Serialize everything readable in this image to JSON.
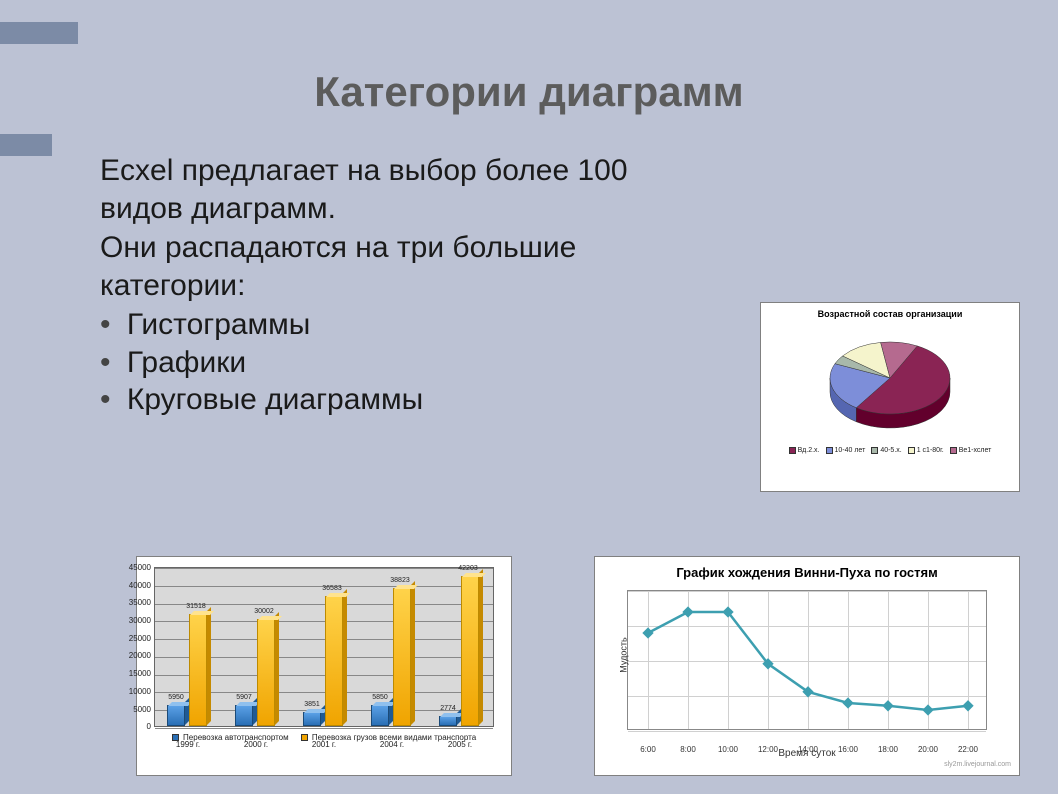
{
  "slide": {
    "title": "Категории диаграмм",
    "para1": "Ecxel предлагает на выбор более 100 видов диаграмм.",
    "para2": "Они распадаются на три большие категории:",
    "bullets": [
      "Гистограммы",
      "Графики",
      "Круговые диаграммы"
    ]
  },
  "pie": {
    "type": "pie",
    "title": "Возрастной состав организации",
    "slices": [
      {
        "label": "Вд.2.x.",
        "value": 52,
        "color": "#8a2454"
      },
      {
        "label": "10-40 лет",
        "value": 22,
        "color": "#7d8ed9"
      },
      {
        "label": "40-5.x.",
        "value": 4,
        "color": "#a8b8aa"
      },
      {
        "label": "1 с1-80г.",
        "value": 12,
        "color": "#f5f4cc"
      },
      {
        "label": "Ве1-хслет",
        "value": 10,
        "color": "#b56a8f"
      }
    ],
    "background_color": "#ffffff",
    "title_fontsize": 9
  },
  "bar": {
    "type": "bar",
    "y_max": 45000,
    "y_step": 5000,
    "categories": [
      "1999 г.",
      "2000 г.",
      "2001 г.",
      "2004 г.",
      "2005 г."
    ],
    "series": [
      {
        "name": "Перевозка автотранспортом",
        "color": "#2a6fb5",
        "values": [
          5950,
          5907,
          3851,
          5850,
          2774
        ]
      },
      {
        "name": "Перевозка грузов всеми видами транспорта",
        "color": "#f0a400",
        "values": [
          31518,
          30002,
          36583,
          38823,
          42203
        ]
      }
    ],
    "background_color": "#d9d9d9",
    "grid_color": "#888888",
    "label_fontsize": 8
  },
  "line": {
    "type": "line",
    "title": "График хождения Винни-Пуха по гостям",
    "xlabel": "Время суток",
    "ylabel": "Мудость",
    "series_color": "#3d9fb0",
    "marker": "diamond",
    "x_labels": [
      "6:00",
      "8:00",
      "10:00",
      "12:00",
      "14:00",
      "16:00",
      "18:00",
      "20:00",
      "22:00"
    ],
    "y_values": [
      70,
      85,
      85,
      48,
      28,
      20,
      18,
      15,
      18
    ],
    "ylim": [
      0,
      100
    ],
    "grid_color": "#d0d0d0",
    "footer": "sly2m.livejournal.com"
  }
}
